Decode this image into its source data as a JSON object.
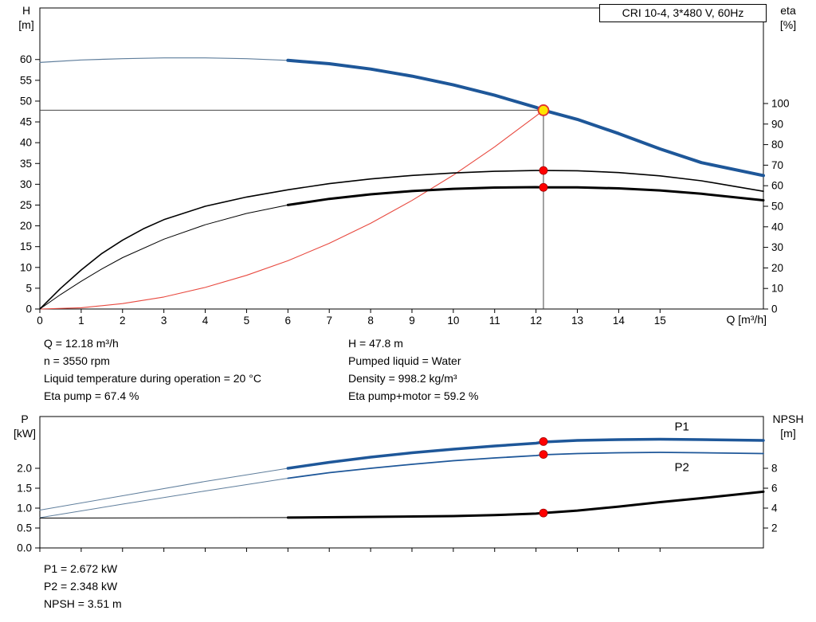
{
  "header_box": {
    "label": "CRI 10-4, 3*480 V, 60Hz"
  },
  "info_top": {
    "left": [
      "Q = 12.18 m³/h",
      "n = 3550 rpm",
      "Liquid temperature during operation = 20 °C",
      "Eta pump = 67.4 %"
    ],
    "right": [
      "H = 47.8 m",
      "Pumped liquid = Water",
      "Density = 998.2 kg/m³",
      "Eta pump+motor = 59.2 %"
    ]
  },
  "info_bottom": [
    "P1 = 2.672 kW",
    "P2 = 2.348 kW",
    "NPSH = 3.51 m"
  ],
  "colors": {
    "curve_blue": "#1e5799",
    "low_flow_gray": "#5f7e9c",
    "system_red": "#e8493f",
    "marker_red": "#ff0000",
    "marker_yellow": "#ffe400",
    "ref_line": "#444444"
  },
  "chart_data": [
    {
      "name": "head-efficiency-chart",
      "type": "line",
      "x_axis": {
        "label": "Q [m³/h]",
        "range": [
          0,
          17.5
        ],
        "show_labels": true,
        "ticks": [
          "0",
          "1",
          "2",
          "3",
          "4",
          "5",
          "6",
          "7",
          "8",
          "9",
          "10",
          "11",
          "12",
          "13",
          "14",
          "15"
        ]
      },
      "y_left": {
        "label_lines": [
          "H",
          "[m]"
        ],
        "range": [
          0,
          72.4
        ],
        "ticks": [
          "0",
          "5",
          "10",
          "15",
          "20",
          "25",
          "30",
          "35",
          "40",
          "45",
          "50",
          "55",
          "60"
        ]
      },
      "y_right": {
        "label_lines": [
          "eta",
          "[%]"
        ],
        "range": [
          0,
          146.5
        ],
        "ticks": [
          "0",
          "10",
          "20",
          "30",
          "40",
          "50",
          "60",
          "70",
          "80",
          "90",
          "100"
        ]
      },
      "duty_point": {
        "q": 12.18,
        "h": 47.8,
        "eta_pump": 67.4,
        "eta_pump_motor": 59.2
      },
      "ref_lines": [
        {
          "name": "duty-head-line",
          "type": "h",
          "axis": "left",
          "v": 47.8,
          "q0": 0,
          "q1": 12.18
        },
        {
          "name": "duty-flow-line",
          "type": "v",
          "axis": "left",
          "q": 12.18,
          "v0": 0,
          "v1": 47.8
        }
      ],
      "series": [
        {
          "name": "head-curve-low-flow",
          "axis": "left",
          "color": "#5f7e9c",
          "width": 1.2,
          "points": [
            [
              0,
              59.3
            ],
            [
              1,
              59.9
            ],
            [
              2,
              60.2
            ],
            [
              3,
              60.4
            ],
            [
              4,
              60.4
            ],
            [
              5,
              60.2
            ],
            [
              6,
              59.8
            ]
          ]
        },
        {
          "name": "head-curve",
          "axis": "left",
          "color": "#1e5799",
          "width": 4,
          "points": [
            [
              6,
              59.8
            ],
            [
              7,
              59.0
            ],
            [
              8,
              57.7
            ],
            [
              9,
              56.0
            ],
            [
              10,
              53.9
            ],
            [
              11,
              51.4
            ],
            [
              12,
              48.5
            ],
            [
              12.18,
              47.8
            ],
            [
              13,
              45.6
            ],
            [
              14,
              42.2
            ],
            [
              15,
              38.5
            ],
            [
              16,
              35.2
            ],
            [
              17.5,
              32.1
            ]
          ]
        },
        {
          "name": "system-curve",
          "axis": "left",
          "color": "#e8493f",
          "width": 1.1,
          "points": [
            [
              0,
              0
            ],
            [
              1,
              0.3
            ],
            [
              2,
              1.3
            ],
            [
              3,
              2.9
            ],
            [
              4,
              5.2
            ],
            [
              5,
              8.1
            ],
            [
              6,
              11.6
            ],
            [
              7,
              15.8
            ],
            [
              8,
              20.6
            ],
            [
              9,
              26.1
            ],
            [
              10,
              32.2
            ],
            [
              11,
              39.0
            ],
            [
              12,
              46.4
            ],
            [
              12.18,
              47.8
            ]
          ]
        },
        {
          "name": "eta-pump-curve",
          "axis": "right",
          "color": "#000000",
          "width": 1.6,
          "points": [
            [
              0,
              0
            ],
            [
              0.5,
              10
            ],
            [
              1,
              19
            ],
            [
              1.5,
              27
            ],
            [
              2,
              33.5
            ],
            [
              2.5,
              39
            ],
            [
              3,
              43.5
            ],
            [
              4,
              50
            ],
            [
              5,
              54.5
            ],
            [
              6,
              58
            ],
            [
              7,
              61
            ],
            [
              8,
              63.3
            ],
            [
              9,
              65
            ],
            [
              10,
              66.2
            ],
            [
              11,
              67
            ],
            [
              12,
              67.4
            ],
            [
              12.18,
              67.4
            ],
            [
              13,
              67.3
            ],
            [
              14,
              66.4
            ],
            [
              15,
              64.8
            ],
            [
              16,
              62.4
            ],
            [
              17.5,
              57.3
            ]
          ]
        },
        {
          "name": "eta-pump-motor-curve-low-flow",
          "axis": "right",
          "color": "#000000",
          "width": 1,
          "points": [
            [
              0,
              0
            ],
            [
              0.5,
              7
            ],
            [
              1,
              13.5
            ],
            [
              1.5,
              19.5
            ],
            [
              2,
              25
            ],
            [
              3,
              34
            ],
            [
              4,
              41
            ],
            [
              5,
              46.5
            ],
            [
              6,
              50.6
            ]
          ]
        },
        {
          "name": "eta-pump-motor-curve",
          "axis": "right",
          "color": "#000000",
          "width": 3,
          "points": [
            [
              6,
              50.6
            ],
            [
              7,
              53.6
            ],
            [
              8,
              55.8
            ],
            [
              9,
              57.4
            ],
            [
              10,
              58.5
            ],
            [
              11,
              59.1
            ],
            [
              12,
              59.3
            ],
            [
              12.18,
              59.2
            ],
            [
              13,
              59.2
            ],
            [
              14,
              58.7
            ],
            [
              15,
              57.7
            ],
            [
              16,
              56.1
            ],
            [
              17.5,
              52.9
            ]
          ]
        }
      ],
      "markers": [
        {
          "name": "duty-point-marker",
          "axis": "left",
          "q": 12.18,
          "v": 47.8,
          "r": 6.5,
          "fill": "#ffe400",
          "stroke": "#e03030",
          "stroke_width": 1.8
        },
        {
          "name": "eta-pump-marker",
          "axis": "right",
          "q": 12.18,
          "v": 67.4,
          "r": 5,
          "fill": "#ff0000",
          "stroke": "#a00000",
          "stroke_width": 0.8
        },
        {
          "name": "eta-pump-motor-marker",
          "axis": "right",
          "q": 12.18,
          "v": 59.2,
          "r": 5,
          "fill": "#ff0000",
          "stroke": "#a00000",
          "stroke_width": 0.8
        }
      ],
      "labels": []
    },
    {
      "name": "power-npsh-chart",
      "type": "line",
      "x_axis": {
        "label": "",
        "range": [
          0,
          17.5
        ],
        "show_labels": false,
        "ticks": [
          "0",
          "1",
          "2",
          "3",
          "4",
          "5",
          "6",
          "7",
          "8",
          "9",
          "10",
          "11",
          "12",
          "13",
          "14",
          "15"
        ]
      },
      "y_left": {
        "label_lines": [
          "P",
          "[kW]"
        ],
        "range": [
          0,
          3.3
        ],
        "ticks": [
          "0.0",
          "0.5",
          "1.0",
          "1.5",
          "2.0"
        ]
      },
      "y_right": {
        "label_lines": [
          "NPSH",
          "[m]"
        ],
        "range": [
          0,
          13.2
        ],
        "ticks": [
          "2",
          "4",
          "6",
          "8"
        ]
      },
      "duty_point": {
        "q": 12.18,
        "p1": 2.672,
        "p2": 2.348,
        "npsh": 3.51
      },
      "ref_lines": [],
      "series": [
        {
          "name": "p1-curve-low-flow",
          "axis": "left",
          "color": "#5f7e9c",
          "width": 1,
          "points": [
            [
              0,
              0.95
            ],
            [
              2,
              1.31
            ],
            [
              4,
              1.67
            ],
            [
              6,
              2.0
            ]
          ]
        },
        {
          "name": "p1-curve",
          "axis": "left",
          "color": "#1e5799",
          "width": 3.5,
          "points": [
            [
              6,
              2.0
            ],
            [
              7,
              2.15
            ],
            [
              8,
              2.28
            ],
            [
              9,
              2.39
            ],
            [
              10,
              2.48
            ],
            [
              11,
              2.56
            ],
            [
              12,
              2.63
            ],
            [
              12.18,
              2.66
            ],
            [
              13,
              2.7
            ],
            [
              14,
              2.72
            ],
            [
              15,
              2.73
            ],
            [
              16,
              2.72
            ],
            [
              17.5,
              2.7
            ]
          ]
        },
        {
          "name": "p2-curve-low-flow",
          "axis": "left",
          "color": "#5f7e9c",
          "width": 1,
          "points": [
            [
              0,
              0.76
            ],
            [
              2,
              1.1
            ],
            [
              4,
              1.43
            ],
            [
              6,
              1.75
            ]
          ]
        },
        {
          "name": "p2-curve",
          "axis": "left",
          "color": "#1e5799",
          "width": 1.8,
          "points": [
            [
              6,
              1.75
            ],
            [
              7,
              1.89
            ],
            [
              8,
              2.0
            ],
            [
              9,
              2.1
            ],
            [
              10,
              2.19
            ],
            [
              11,
              2.26
            ],
            [
              12,
              2.32
            ],
            [
              12.18,
              2.34
            ],
            [
              13,
              2.37
            ],
            [
              14,
              2.39
            ],
            [
              15,
              2.4
            ],
            [
              16,
              2.39
            ],
            [
              17.5,
              2.37
            ]
          ]
        },
        {
          "name": "npsh-curve-low-flow",
          "axis": "right",
          "color": "#000000",
          "width": 1,
          "points": [
            [
              0,
              3.0
            ],
            [
              6,
              3.05
            ]
          ]
        },
        {
          "name": "npsh-curve",
          "axis": "right",
          "color": "#000000",
          "width": 3,
          "points": [
            [
              6,
              3.05
            ],
            [
              8,
              3.12
            ],
            [
              10,
              3.2
            ],
            [
              11,
              3.3
            ],
            [
              12,
              3.45
            ],
            [
              12.18,
              3.51
            ],
            [
              13,
              3.75
            ],
            [
              14,
              4.15
            ],
            [
              15,
              4.6
            ],
            [
              16,
              5.0
            ],
            [
              17.5,
              5.65
            ]
          ]
        }
      ],
      "markers": [
        {
          "name": "p1-marker",
          "axis": "left",
          "q": 12.18,
          "v": 2.672,
          "r": 5,
          "fill": "#ff0000",
          "stroke": "#a00000",
          "stroke_width": 0.8
        },
        {
          "name": "p2-marker",
          "axis": "left",
          "q": 12.18,
          "v": 2.348,
          "r": 5,
          "fill": "#ff0000",
          "stroke": "#a00000",
          "stroke_width": 0.8
        },
        {
          "name": "npsh-marker",
          "axis": "right",
          "q": 12.18,
          "v": 3.51,
          "r": 5,
          "fill": "#ff0000",
          "stroke": "#a00000",
          "stroke_width": 0.8
        }
      ],
      "labels": [
        {
          "name": "p1-curve-label",
          "text": "P1",
          "axis": "left",
          "q": 15.35,
          "v": 2.95,
          "color": "#1e5799"
        },
        {
          "name": "p2-curve-label",
          "text": "P2",
          "axis": "left",
          "q": 15.35,
          "v": 1.93,
          "color": "#1e5799"
        }
      ]
    }
  ]
}
